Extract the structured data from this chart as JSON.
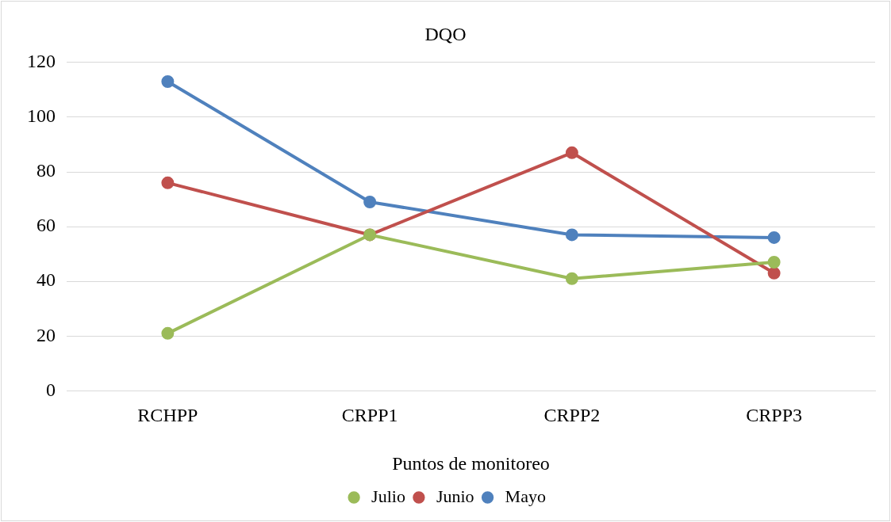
{
  "chart_data": {
    "type": "line",
    "title": "DQO",
    "xlabel": "Puntos de monitoreo",
    "categories": [
      "RCHPP",
      "CRPP1",
      "CRPP2",
      "CRPP3"
    ],
    "series": [
      {
        "name": "Mayo",
        "color": "#4f81bd",
        "values": [
          113,
          69,
          57,
          56
        ]
      },
      {
        "name": "Junio",
        "color": "#c0504d",
        "values": [
          76,
          57,
          87,
          43
        ]
      },
      {
        "name": "Julio",
        "color": "#9bbb59",
        "values": [
          21,
          57,
          41,
          47
        ]
      }
    ],
    "ylim": [
      0,
      120
    ],
    "yticks": [
      0,
      20,
      40,
      60,
      80,
      100,
      120
    ],
    "grid": "y",
    "legend": "bottom",
    "marker": "circle",
    "line_style": "solid"
  }
}
